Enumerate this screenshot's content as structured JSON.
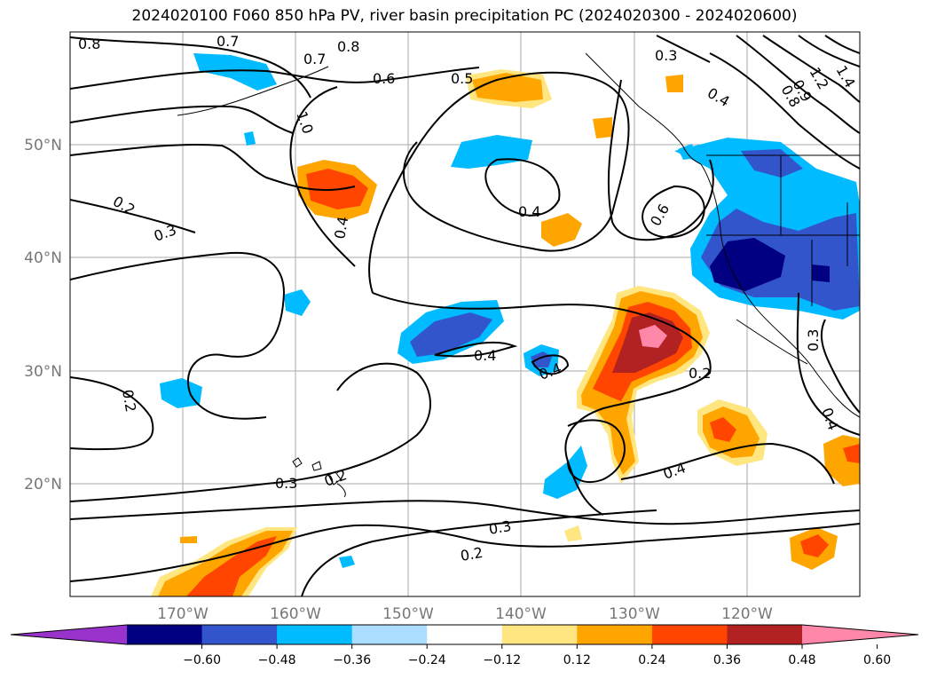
{
  "title": "2024020100 F060 850 hPa PV, river basin precipitation PC (2024020300 - 2024020600)",
  "lat_labels": [
    "50°N",
    "40°N",
    "30°N",
    "20°N"
  ],
  "lon_labels": [
    "170°W",
    "160°W",
    "150°W",
    "140°W",
    "130°W",
    "120°W"
  ],
  "colorbar": {
    "tick_labels": [
      "−0.60",
      "−0.48",
      "−0.36",
      "−0.24",
      "−0.12",
      "0.12",
      "0.24",
      "0.36",
      "0.48",
      "0.60"
    ],
    "colors": [
      "#9933cc",
      "#000080",
      "#3355cc",
      "#00bbff",
      "#aaddff",
      "#ffffff",
      "#ffe680",
      "#ffa500",
      "#ff4500",
      "#b22222",
      "#ff88aa"
    ]
  },
  "contour_labels": [
    "0.8",
    "0.7",
    "0.8",
    "0.7",
    "1.0",
    "0.6",
    "0.5",
    "0.3",
    "0.4",
    "1.2",
    "1.4",
    "0.9",
    "0.8",
    "0.2",
    "0.3",
    "0.4",
    "0.4",
    "0.6",
    "0.4",
    "0.4",
    "0.2",
    "0.3",
    "0.2",
    "0.3",
    "0.2",
    "0.4",
    "0.3",
    "0.2",
    "0.4"
  ]
}
